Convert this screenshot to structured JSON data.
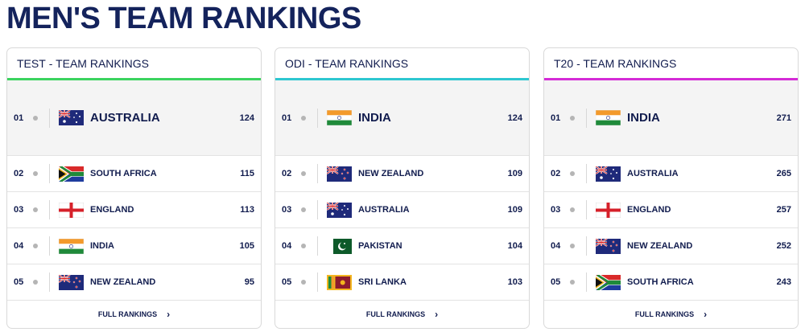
{
  "title": "MEN'S TEAM RANKINGS",
  "footer_link": "FULL RANKINGS",
  "cards": [
    {
      "format": "TEST",
      "label": "- TEAM RANKINGS",
      "accent": "#3bd35f",
      "rows": [
        {
          "pos": "01",
          "team": "AUSTRALIA",
          "points": "124",
          "flag": "australia-flag"
        },
        {
          "pos": "02",
          "team": "SOUTH AFRICA",
          "points": "115",
          "flag": "south-africa-flag"
        },
        {
          "pos": "03",
          "team": "ENGLAND",
          "points": "113",
          "flag": "england-flag"
        },
        {
          "pos": "04",
          "team": "INDIA",
          "points": "105",
          "flag": "india-flag"
        },
        {
          "pos": "05",
          "team": "NEW ZEALAND",
          "points": "95",
          "flag": "new-zealand-flag"
        }
      ]
    },
    {
      "format": "ODI",
      "label": "- TEAM RANKINGS",
      "accent": "#2ec7d0",
      "rows": [
        {
          "pos": "01",
          "team": "INDIA",
          "points": "124",
          "flag": "india-flag"
        },
        {
          "pos": "02",
          "team": "NEW ZEALAND",
          "points": "109",
          "flag": "new-zealand-flag"
        },
        {
          "pos": "03",
          "team": "AUSTRALIA",
          "points": "109",
          "flag": "australia-flag"
        },
        {
          "pos": "04",
          "team": "PAKISTAN",
          "points": "104",
          "flag": "pakistan-flag"
        },
        {
          "pos": "05",
          "team": "SRI LANKA",
          "points": "103",
          "flag": "sri-lanka-flag"
        }
      ]
    },
    {
      "format": "T20",
      "label": "- TEAM RANKINGS",
      "accent": "#d42bd6",
      "rows": [
        {
          "pos": "01",
          "team": "INDIA",
          "points": "271",
          "flag": "india-flag"
        },
        {
          "pos": "02",
          "team": "AUSTRALIA",
          "points": "265",
          "flag": "australia-flag"
        },
        {
          "pos": "03",
          "team": "ENGLAND",
          "points": "257",
          "flag": "england-flag"
        },
        {
          "pos": "04",
          "team": "NEW ZEALAND",
          "points": "252",
          "flag": "new-zealand-flag"
        },
        {
          "pos": "05",
          "team": "SOUTH AFRICA",
          "points": "243",
          "flag": "south-africa-flag"
        }
      ]
    }
  ]
}
